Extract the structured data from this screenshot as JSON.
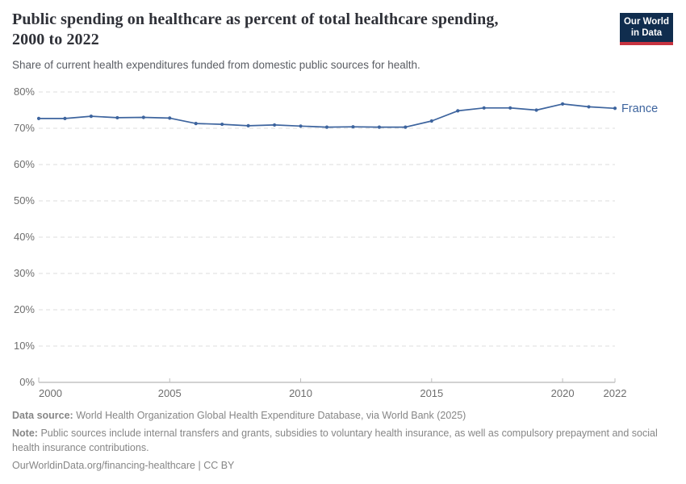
{
  "header": {
    "title": "Public spending on healthcare as percent of total healthcare spending, 2000 to 2022",
    "subtitle": "Share of current health expenditures funded from domestic public sources for health.",
    "logo": {
      "line1": "Our World",
      "line2": "in Data",
      "bg_color": "#102d4e",
      "accent_color": "#c73340"
    }
  },
  "chart_data": {
    "type": "line",
    "title": "Public spending on healthcare as percent of total healthcare spending, 2000 to 2022",
    "xlabel": "",
    "ylabel": "",
    "xlim": [
      2000,
      2022
    ],
    "ylim": [
      0,
      80
    ],
    "xticks": [
      2000,
      2005,
      2010,
      2015,
      2020,
      2022
    ],
    "yticks": [
      0,
      10,
      20,
      30,
      40,
      50,
      60,
      70,
      80
    ],
    "ytick_suffix": "%",
    "grid": "horizontal-dashed",
    "legend_position": "end-of-line-label",
    "x": [
      2000,
      2001,
      2002,
      2003,
      2004,
      2005,
      2006,
      2007,
      2008,
      2009,
      2010,
      2011,
      2012,
      2013,
      2014,
      2015,
      2016,
      2017,
      2018,
      2019,
      2020,
      2021,
      2022
    ],
    "series": [
      {
        "name": "France",
        "color": "#3d649e",
        "values": [
          72.7,
          72.7,
          73.3,
          72.9,
          73.0,
          72.8,
          71.3,
          71.1,
          70.7,
          70.9,
          70.6,
          70.3,
          70.4,
          70.3,
          70.3,
          72.0,
          74.8,
          75.6,
          75.6,
          75.0,
          76.7,
          75.9,
          75.5
        ]
      }
    ],
    "axis_color": "#a6a6a6",
    "gridline_color": "#dcdcdc",
    "tick_label_color": "#6e6e6e"
  },
  "footer": {
    "data_source_label": "Data source:",
    "data_source_text": "World Health Organization Global Health Expenditure Database, via World Bank (2025)",
    "note_label": "Note:",
    "note_text": "Public sources include internal transfers and grants, subsidies to voluntary health insurance, as well as compulsory prepayment and social health insurance contributions.",
    "url_text": "OurWorldinData.org/financing-healthcare",
    "separator": " | ",
    "license_text": "CC BY"
  }
}
